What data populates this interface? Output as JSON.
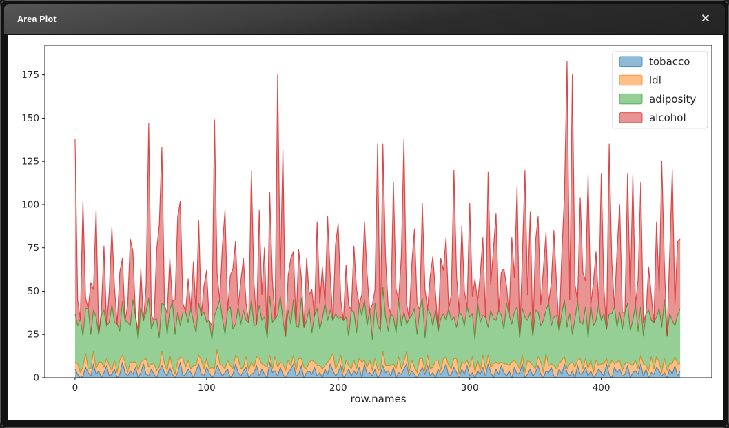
{
  "window": {
    "title": "Area Plot",
    "close_icon": "✕"
  },
  "chart_data": {
    "type": "area",
    "stacked": true,
    "title": "",
    "xlabel": "row.names",
    "ylabel": "",
    "grid": false,
    "legend_position": "upper right",
    "fill_alpha": 0.5,
    "x_ticks": [
      0,
      100,
      200,
      300,
      400
    ],
    "y_ticks": [
      0,
      25,
      50,
      75,
      100,
      125,
      150,
      175
    ],
    "xlim": [
      -23,
      484
    ],
    "ylim": [
      0,
      192
    ],
    "x_start": 0,
    "x_step": 2,
    "series": [
      {
        "name": "tobacco",
        "color": "#1f77b4",
        "values": [
          5,
          2,
          0,
          1,
          6,
          3,
          1,
          8,
          2,
          4,
          0,
          3,
          7,
          1,
          2,
          5,
          0,
          2,
          9,
          3,
          1,
          4,
          2,
          6,
          0,
          3,
          8,
          2,
          1,
          5,
          2,
          0,
          4,
          7,
          3,
          1,
          6,
          2,
          0,
          3,
          9,
          1,
          2,
          5,
          3,
          0,
          4,
          8,
          2,
          1,
          6,
          3,
          0,
          2,
          7,
          4,
          1,
          3,
          5,
          0,
          2,
          8,
          3,
          1,
          4,
          6,
          0,
          2,
          3,
          7,
          1,
          5,
          2,
          0,
          9,
          3,
          4,
          1,
          6,
          2,
          0,
          3,
          5,
          8,
          1,
          2,
          7,
          0,
          3,
          4,
          2,
          6,
          1,
          3,
          0,
          5,
          2,
          8,
          4,
          1,
          3,
          7,
          0,
          2,
          5,
          1,
          4,
          2,
          6,
          0,
          8,
          2,
          3,
          1,
          5,
          0,
          2,
          7,
          3,
          4,
          1,
          6,
          0,
          3,
          2,
          5,
          8,
          1,
          4,
          2,
          0,
          3,
          6,
          2,
          7,
          1,
          3,
          0,
          5,
          2,
          4,
          8,
          1,
          2,
          6,
          3,
          0,
          5,
          2,
          7,
          1,
          3,
          0,
          4,
          2,
          6,
          1,
          8,
          3,
          0,
          5,
          2,
          7,
          3,
          1,
          4,
          0,
          6,
          2,
          3,
          8,
          0,
          2,
          5,
          1,
          3,
          7,
          2,
          0,
          4,
          3,
          6,
          1,
          0,
          5,
          2,
          8,
          3,
          1,
          4,
          0,
          7,
          2,
          3,
          6,
          1,
          4,
          0,
          2,
          5,
          3,
          1,
          8,
          2,
          0,
          6,
          3,
          5,
          1,
          2,
          7,
          0,
          3,
          4,
          2,
          8,
          1,
          5,
          0,
          3,
          2,
          6,
          4,
          1,
          3,
          0,
          5,
          2,
          7,
          1,
          4
        ]
      },
      {
        "name": "ldl",
        "color": "#ff7f0e",
        "values": [
          4,
          6,
          3,
          5,
          8,
          2,
          4,
          7,
          3,
          5,
          9,
          3,
          4,
          6,
          2,
          5,
          3,
          8,
          4,
          6,
          2,
          5,
          7,
          3,
          4,
          6,
          2,
          9,
          5,
          3,
          6,
          4,
          2,
          8,
          5,
          3,
          7,
          4,
          2,
          6,
          3,
          10,
          4,
          5,
          2,
          7,
          3,
          5,
          8,
          4,
          5,
          2,
          6,
          3,
          9,
          4,
          6,
          2,
          5,
          7,
          3,
          5,
          8,
          4,
          2,
          6,
          4,
          7,
          3,
          5,
          10,
          3,
          5,
          6,
          4,
          2,
          8,
          5,
          3,
          6,
          4,
          7,
          2,
          5,
          3,
          9,
          4,
          6,
          2,
          5,
          8,
          3,
          6,
          4,
          5,
          2,
          7,
          3,
          10,
          4,
          5,
          6,
          3,
          8,
          2,
          4,
          6,
          3,
          5,
          9,
          2,
          4,
          7,
          3,
          6,
          5,
          2,
          8,
          4,
          3,
          6,
          2,
          5,
          9,
          3,
          4,
          7,
          2,
          6,
          4,
          3,
          8,
          5,
          2,
          6,
          4,
          3,
          10,
          5,
          2,
          7,
          4,
          6,
          3,
          5,
          8,
          2,
          4,
          6,
          3,
          5,
          9,
          3,
          6,
          2,
          7,
          4,
          5,
          3,
          8,
          4,
          6,
          2,
          5,
          7,
          3,
          9,
          4,
          6,
          2,
          5,
          3,
          8,
          4,
          6,
          2,
          5,
          7,
          3,
          10,
          4,
          2,
          6,
          5,
          3,
          8,
          4,
          2,
          7,
          5,
          6,
          3,
          9,
          2,
          5,
          4,
          6,
          3,
          8,
          2,
          5,
          7,
          3,
          4,
          10,
          2,
          6,
          5,
          3,
          6,
          2,
          8,
          4,
          6,
          3,
          5,
          7,
          2,
          4,
          9,
          3,
          6,
          5,
          2,
          8,
          4,
          3,
          6,
          5,
          7,
          4
        ]
      },
      {
        "name": "adiposity",
        "color": "#2ca02c",
        "values": [
          28,
          22,
          31,
          18,
          26,
          35,
          20,
          24,
          30,
          16,
          27,
          33,
          19,
          25,
          38,
          22,
          28,
          17,
          31,
          24,
          29,
          21,
          36,
          26,
          18,
          32,
          23,
          27,
          40,
          20,
          25,
          30,
          17,
          28,
          34,
          21,
          26,
          38,
          23,
          29,
          18,
          27,
          32,
          22,
          35,
          25,
          19,
          30,
          26,
          33,
          21,
          28,
          16,
          31,
          24,
          37,
          27,
          20,
          29,
          34,
          23,
          18,
          30,
          26,
          33,
          21,
          28,
          36,
          24,
          19,
          31,
          25,
          28,
          17,
          34,
          27,
          22,
          30,
          38,
          25,
          20,
          29,
          24,
          32,
          26,
          18,
          35,
          23,
          28,
          31,
          16,
          27,
          33,
          21,
          29,
          36,
          24,
          28,
          19,
          32,
          26,
          22,
          30,
          25,
          17,
          34,
          28,
          21,
          31,
          27,
          35,
          24,
          29,
          18,
          32,
          26,
          23,
          37,
          28,
          20,
          30,
          27,
          21,
          33,
          25,
          29,
          16,
          31,
          26,
          34,
          22,
          28,
          35,
          19,
          27,
          32,
          24,
          29,
          17,
          30,
          26,
          21,
          33,
          28,
          24,
          18,
          36,
          27,
          22,
          31,
          29,
          25,
          19,
          34,
          28,
          23,
          30,
          16,
          33,
          26,
          24,
          31,
          27,
          20,
          35,
          29,
          22,
          28,
          33,
          18,
          27,
          32,
          23,
          29,
          17,
          34,
          26,
          21,
          30,
          25,
          36,
          22,
          28,
          31,
          19,
          27,
          33,
          24,
          29,
          16,
          28,
          34,
          21,
          26,
          30,
          18,
          32,
          27,
          23,
          35,
          25,
          29,
          17,
          31,
          27,
          33,
          20,
          28,
          24,
          30,
          34,
          19,
          26,
          32,
          22,
          28,
          16,
          30,
          35,
          21,
          27,
          23,
          31,
          26,
          34,
          20,
          29,
          25,
          18,
          28,
          32
        ]
      },
      {
        "name": "alcohol",
        "color": "#d62728",
        "values": [
          101,
          15,
          0,
          78,
          6,
          0,
          30,
          12,
          62,
          0,
          3,
          37,
          0,
          18,
          45,
          20,
          0,
          34,
          25,
          0,
          10,
          50,
          28,
          0,
          5,
          22,
          0,
          15,
          101,
          8,
          0,
          40,
          65,
          90,
          0,
          12,
          30,
          0,
          20,
          55,
          72,
          5,
          0,
          25,
          0,
          35,
          10,
          48,
          0,
          15,
          30,
          0,
          8,
          113,
          20,
          0,
          42,
          72,
          0,
          18,
          35,
          48,
          0,
          25,
          30,
          10,
          0,
          75,
          25,
          0,
          55,
          15,
          40,
          0,
          60,
          25,
          0,
          139,
          10,
          99,
          0,
          20,
          38,
          28,
          0,
          45,
          12,
          0,
          36,
          8,
          25,
          0,
          50,
          15,
          30,
          0,
          60,
          20,
          0,
          40,
          55,
          10,
          0,
          30,
          18,
          0,
          38,
          25,
          0,
          12,
          45,
          30,
          0,
          20,
          8,
          104,
          0,
          83,
          35,
          15,
          0,
          78,
          25,
          0,
          40,
          100,
          12,
          0,
          30,
          46,
          18,
          0,
          55,
          28,
          0,
          22,
          40,
          10,
          0,
          35,
          25,
          48,
          0,
          15,
          85,
          30,
          0,
          52,
          20,
          0,
          66,
          10,
          35,
          0,
          28,
          45,
          0,
          90,
          15,
          40,
          62,
          0,
          25,
          35,
          10,
          0,
          50,
          20,
          70,
          0,
          30,
          85,
          15,
          58,
          0,
          40,
          55,
          12,
          30,
          45,
          0,
          25,
          50,
          18,
          0,
          35,
          60,
          154,
          8,
          150,
          20,
          0,
          72,
          30,
          15,
          94,
          0,
          25,
          40,
          0,
          85,
          15,
          0,
          98,
          30,
          0,
          45,
          62,
          10,
          0,
          75,
          20,
          84,
          0,
          30,
          72,
          8,
          0,
          25,
          15,
          0,
          55,
          10,
          96,
          20,
          0,
          35,
          87,
          12,
          43,
          40
        ]
      }
    ]
  }
}
